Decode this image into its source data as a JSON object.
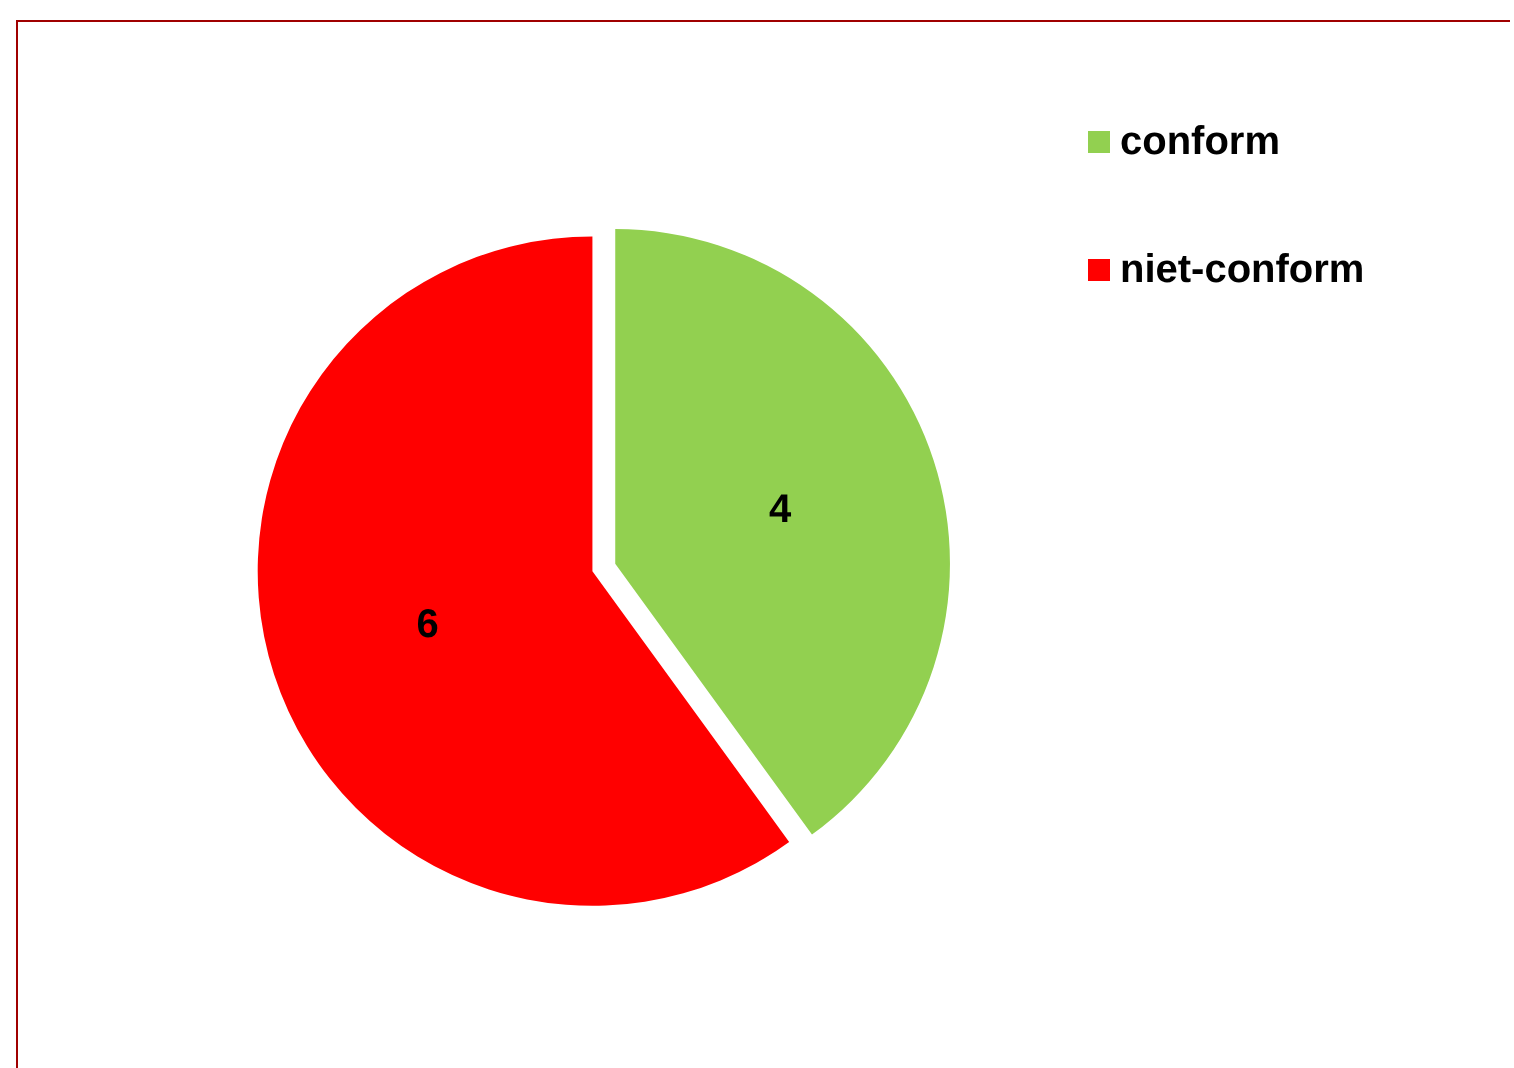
{
  "chart_data": {
    "type": "pie",
    "categories": [
      "conform",
      "niet-conform"
    ],
    "values": [
      4,
      6
    ],
    "colors": [
      "#92d050",
      "#ff0000"
    ],
    "data_labels": true,
    "legend": "top right"
  }
}
